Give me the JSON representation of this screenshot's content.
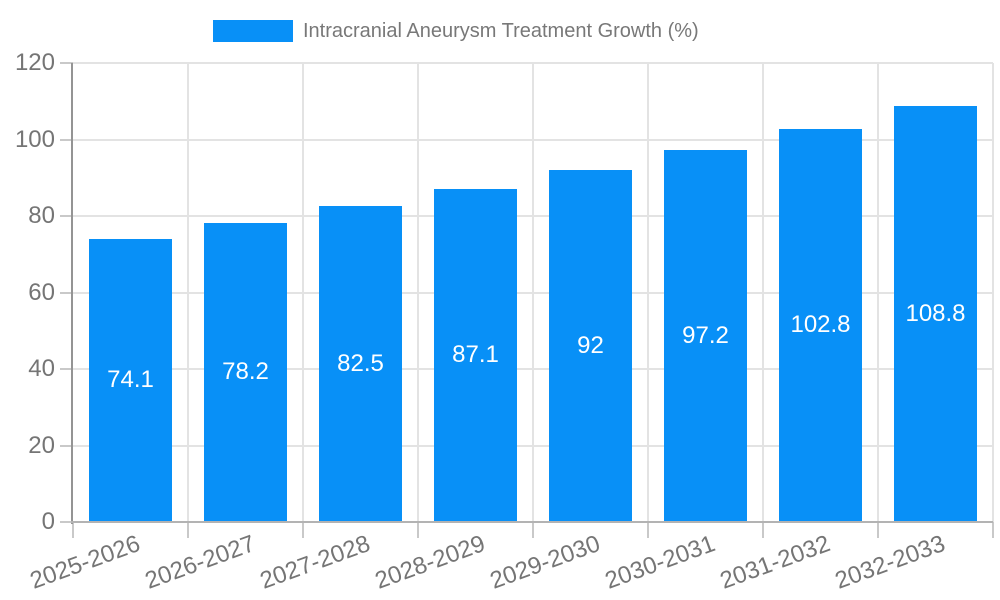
{
  "legend": {
    "label": "Intracranial Aneurysm Treatment Growth (%)"
  },
  "colors": {
    "bar": "#0890f7",
    "grid": "#e3e3e3",
    "axis_y": "#949494",
    "axis_x": "#b3b3b3",
    "tick": "#c9c9c9",
    "tick_text": "#757575",
    "legend_text": "#787878",
    "bar_label": "#ffffff",
    "background": "#ffffff"
  },
  "chart_data": {
    "type": "bar",
    "title": "Intracranial Aneurysm Treatment Growth (%)",
    "categories": [
      "2025-2026",
      "2026-2027",
      "2027-2028",
      "2028-2029",
      "2029-2030",
      "2030-2031",
      "2031-2032",
      "2032-2033"
    ],
    "values": [
      74.1,
      78.2,
      82.5,
      87.1,
      92,
      97.2,
      102.8,
      108.8
    ],
    "value_labels": [
      "74.1",
      "78.2",
      "82.5",
      "87.1",
      "92",
      "97.2",
      "102.8",
      "108.8"
    ],
    "xlabel": "",
    "ylabel": "",
    "ylim": [
      0,
      120
    ],
    "yticks": [
      0,
      20,
      40,
      60,
      80,
      100,
      120
    ],
    "grid": true,
    "legend_position": "top",
    "value_labels_inside_bars": true,
    "x_label_rotation_deg": -20
  }
}
